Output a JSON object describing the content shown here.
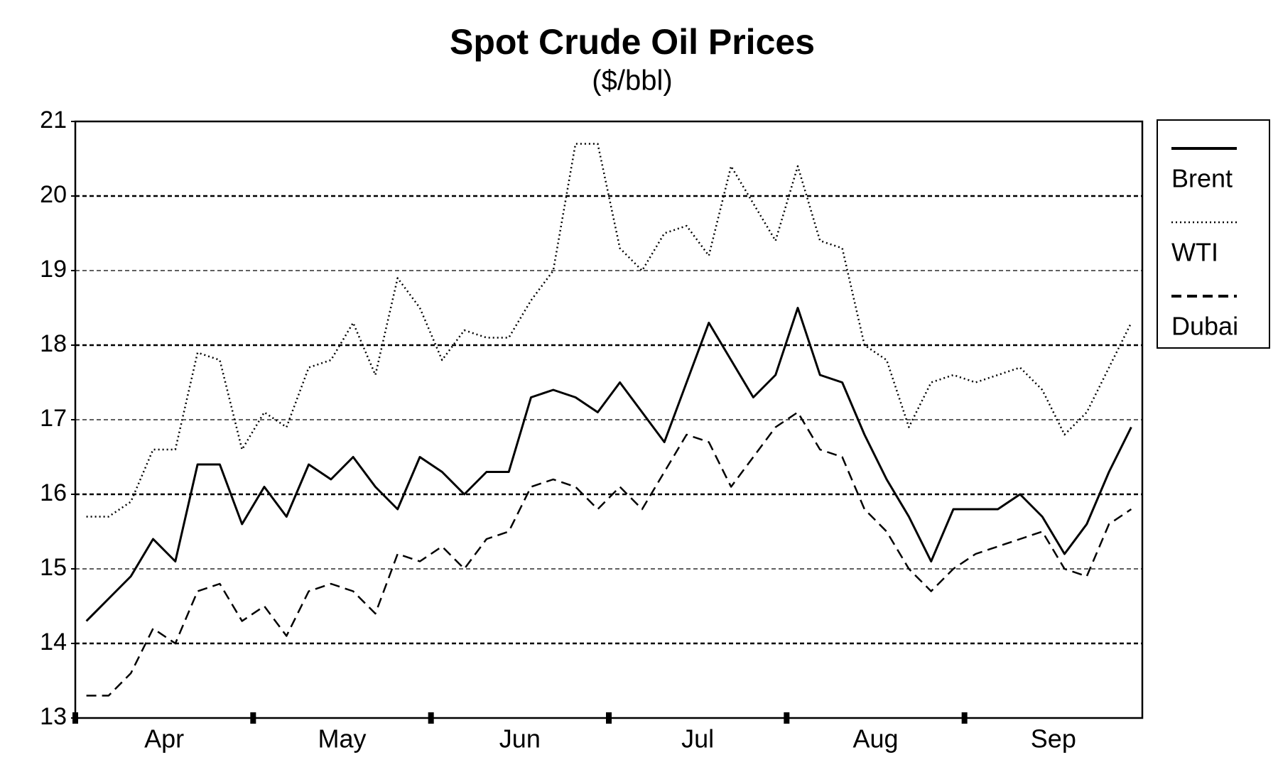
{
  "chart_data": {
    "type": "line",
    "title": "Spot Crude Oil Prices",
    "subtitle": "($/bbl)",
    "categories": [
      null,
      null,
      null,
      null,
      "Apr",
      null,
      null,
      null,
      null,
      null,
      null,
      null,
      "May",
      null,
      null,
      null,
      null,
      null,
      null,
      null,
      "Jun",
      null,
      null,
      null,
      null,
      null,
      null,
      null,
      "Jul",
      null,
      null,
      null,
      null,
      null,
      null,
      null,
      "Aug",
      null,
      null,
      null,
      null,
      null,
      null,
      null,
      "Sep",
      null,
      null,
      null
    ],
    "series": [
      {
        "name": "Brent",
        "color": "#000000",
        "style": "solid",
        "values": [
          14.3,
          14.6,
          14.9,
          15.4,
          15.1,
          16.4,
          16.4,
          15.6,
          16.1,
          15.7,
          16.4,
          16.2,
          16.5,
          16.1,
          15.8,
          16.5,
          16.3,
          16.0,
          16.3,
          16.3,
          17.3,
          17.4,
          17.3,
          17.1,
          17.5,
          17.1,
          16.7,
          17.5,
          18.3,
          17.8,
          17.3,
          17.6,
          18.5,
          17.6,
          17.5,
          16.8,
          16.2,
          15.7,
          15.1,
          15.8,
          15.8,
          15.8,
          16.0,
          15.7,
          15.2,
          15.6,
          16.3,
          16.9
        ]
      },
      {
        "name": "WTI",
        "color": "#000000",
        "style": "dotted",
        "values": [
          15.7,
          15.7,
          15.9,
          16.6,
          16.6,
          17.9,
          17.8,
          16.6,
          17.1,
          16.9,
          17.7,
          17.8,
          18.3,
          17.6,
          18.9,
          18.5,
          17.8,
          18.2,
          18.1,
          18.1,
          18.6,
          19.0,
          20.7,
          20.7,
          19.3,
          19.0,
          19.5,
          19.6,
          19.2,
          20.4,
          19.9,
          19.4,
          20.4,
          19.4,
          19.3,
          18.0,
          17.8,
          16.9,
          17.5,
          17.6,
          17.5,
          17.6,
          17.7,
          17.4,
          16.8,
          17.1,
          17.7,
          18.3
        ]
      },
      {
        "name": "Dubai",
        "color": "#000000",
        "style": "dashed",
        "values": [
          13.3,
          13.3,
          13.6,
          14.2,
          14.0,
          14.7,
          14.8,
          14.3,
          14.5,
          14.1,
          14.7,
          14.8,
          14.7,
          14.4,
          15.2,
          15.1,
          15.3,
          15.0,
          15.4,
          15.5,
          16.1,
          16.2,
          16.1,
          15.8,
          16.1,
          15.8,
          16.3,
          16.8,
          16.7,
          16.1,
          16.5,
          16.9,
          17.1,
          16.6,
          16.5,
          15.8,
          15.5,
          15.0,
          14.7,
          15.0,
          15.2,
          15.3,
          15.4,
          15.5,
          15.0,
          14.9,
          15.6,
          15.8
        ]
      }
    ],
    "ylim": [
      13,
      21
    ],
    "yticks": [
      13,
      14,
      15,
      16,
      17,
      18,
      19,
      20,
      21
    ],
    "grid": true,
    "legend": "right"
  }
}
